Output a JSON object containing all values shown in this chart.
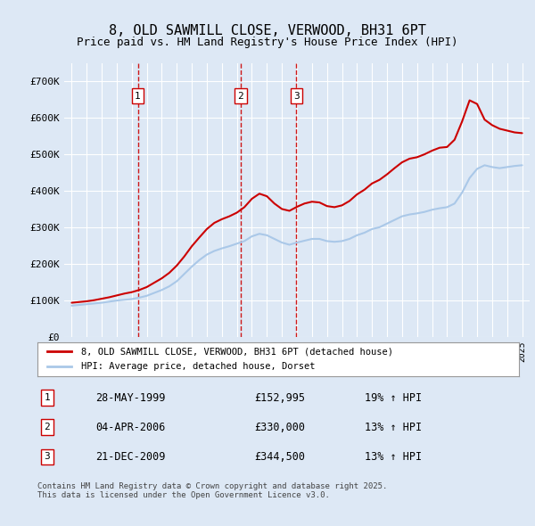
{
  "title": "8, OLD SAWMILL CLOSE, VERWOOD, BH31 6PT",
  "subtitle": "Price paid vs. HM Land Registry's House Price Index (HPI)",
  "legend_line1": "8, OLD SAWMILL CLOSE, VERWOOD, BH31 6PT (detached house)",
  "legend_line2": "HPI: Average price, detached house, Dorset",
  "footnote": "Contains HM Land Registry data © Crown copyright and database right 2025.\nThis data is licensed under the Open Government Licence v3.0.",
  "transactions": [
    {
      "num": 1,
      "date": "28-MAY-1999",
      "price": "£152,995",
      "change": "19% ↑ HPI",
      "year": 1999.4
    },
    {
      "num": 2,
      "date": "04-APR-2006",
      "price": "£330,000",
      "change": "13% ↑ HPI",
      "year": 2006.25
    },
    {
      "num": 3,
      "date": "21-DEC-2009",
      "price": "£344,500",
      "change": "13% ↑ HPI",
      "year": 2009.97
    }
  ],
  "ylim": [
    0,
    750000
  ],
  "xlim_start": 1994.5,
  "xlim_end": 2025.5,
  "background_color": "#dde8f5",
  "plot_bg_color": "#dde8f5",
  "red_line_color": "#cc0000",
  "blue_line_color": "#aac8e8",
  "vline_color": "#cc0000",
  "grid_color": "#ffffff",
  "hpi_data_x": [
    1995.0,
    1995.5,
    1996.0,
    1996.5,
    1997.0,
    1997.5,
    1998.0,
    1998.5,
    1999.0,
    1999.5,
    2000.0,
    2000.5,
    2001.0,
    2001.5,
    2002.0,
    2002.5,
    2003.0,
    2003.5,
    2004.0,
    2004.5,
    2005.0,
    2005.5,
    2006.0,
    2006.5,
    2007.0,
    2007.5,
    2008.0,
    2008.5,
    2009.0,
    2009.5,
    2010.0,
    2010.5,
    2011.0,
    2011.5,
    2012.0,
    2012.5,
    2013.0,
    2013.5,
    2014.0,
    2014.5,
    2015.0,
    2015.5,
    2016.0,
    2016.5,
    2017.0,
    2017.5,
    2018.0,
    2018.5,
    2019.0,
    2019.5,
    2020.0,
    2020.5,
    2021.0,
    2021.5,
    2022.0,
    2022.5,
    2023.0,
    2023.5,
    2024.0,
    2024.5,
    2025.0
  ],
  "hpi_data_y": [
    85000,
    87000,
    89000,
    91000,
    93000,
    96000,
    99000,
    101000,
    103000,
    107000,
    112000,
    120000,
    128000,
    138000,
    152000,
    172000,
    192000,
    210000,
    225000,
    235000,
    242000,
    248000,
    255000,
    262000,
    275000,
    282000,
    278000,
    268000,
    258000,
    252000,
    258000,
    263000,
    268000,
    268000,
    262000,
    260000,
    262000,
    268000,
    278000,
    285000,
    295000,
    300000,
    310000,
    320000,
    330000,
    335000,
    338000,
    342000,
    348000,
    352000,
    355000,
    365000,
    395000,
    435000,
    460000,
    470000,
    465000,
    462000,
    465000,
    468000,
    470000
  ],
  "price_data_x": [
    1995.0,
    1995.5,
    1996.0,
    1996.5,
    1997.0,
    1997.5,
    1998.0,
    1998.5,
    1999.0,
    1999.5,
    2000.0,
    2000.5,
    2001.0,
    2001.5,
    2002.0,
    2002.5,
    2003.0,
    2003.5,
    2004.0,
    2004.5,
    2005.0,
    2005.5,
    2006.0,
    2006.5,
    2007.0,
    2007.5,
    2008.0,
    2008.5,
    2009.0,
    2009.5,
    2010.0,
    2010.5,
    2011.0,
    2011.5,
    2012.0,
    2012.5,
    2013.0,
    2013.5,
    2014.0,
    2014.5,
    2015.0,
    2015.5,
    2016.0,
    2016.5,
    2017.0,
    2017.5,
    2018.0,
    2018.5,
    2019.0,
    2019.5,
    2020.0,
    2020.5,
    2021.0,
    2021.5,
    2022.0,
    2022.5,
    2023.0,
    2023.5,
    2024.0,
    2024.5,
    2025.0
  ],
  "price_data_y": [
    93000,
    95000,
    97000,
    100000,
    104000,
    108000,
    113000,
    118000,
    122000,
    128000,
    136000,
    148000,
    160000,
    175000,
    195000,
    220000,
    248000,
    272000,
    295000,
    312000,
    322000,
    330000,
    340000,
    355000,
    378000,
    392000,
    385000,
    365000,
    350000,
    345000,
    356000,
    365000,
    370000,
    368000,
    358000,
    355000,
    360000,
    372000,
    390000,
    403000,
    420000,
    430000,
    445000,
    462000,
    478000,
    488000,
    492000,
    500000,
    510000,
    518000,
    520000,
    540000,
    590000,
    648000,
    638000,
    595000,
    580000,
    570000,
    565000,
    560000,
    558000
  ]
}
